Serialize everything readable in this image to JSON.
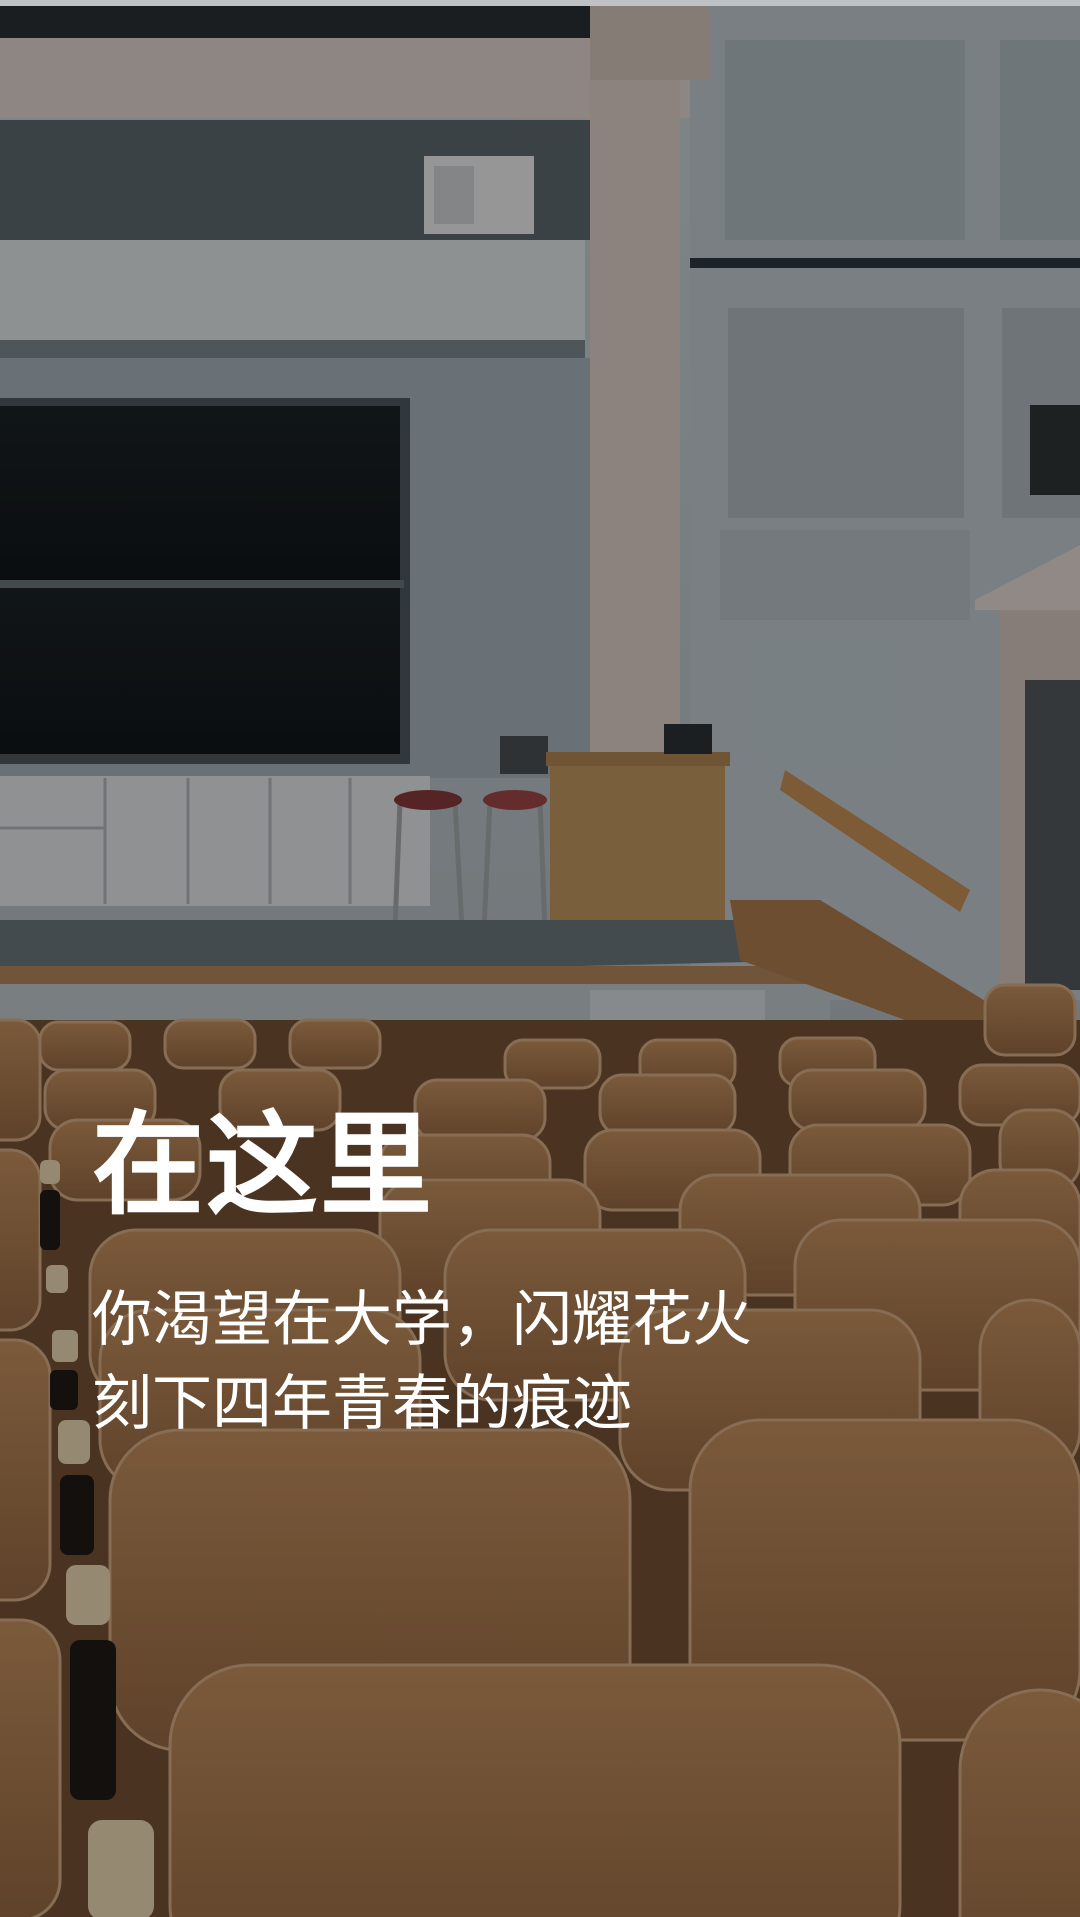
{
  "intro": {
    "headline": "在这里",
    "subtitle_line1": "你渴望在大学，闪耀花火",
    "subtitle_line2": "刻下四年青春的痕迹"
  },
  "background": {
    "subject": "lecture-hall-photo",
    "overlay_color": "#000000",
    "wall_color": "#c9d3d8",
    "seat_color": "#b8865a"
  }
}
